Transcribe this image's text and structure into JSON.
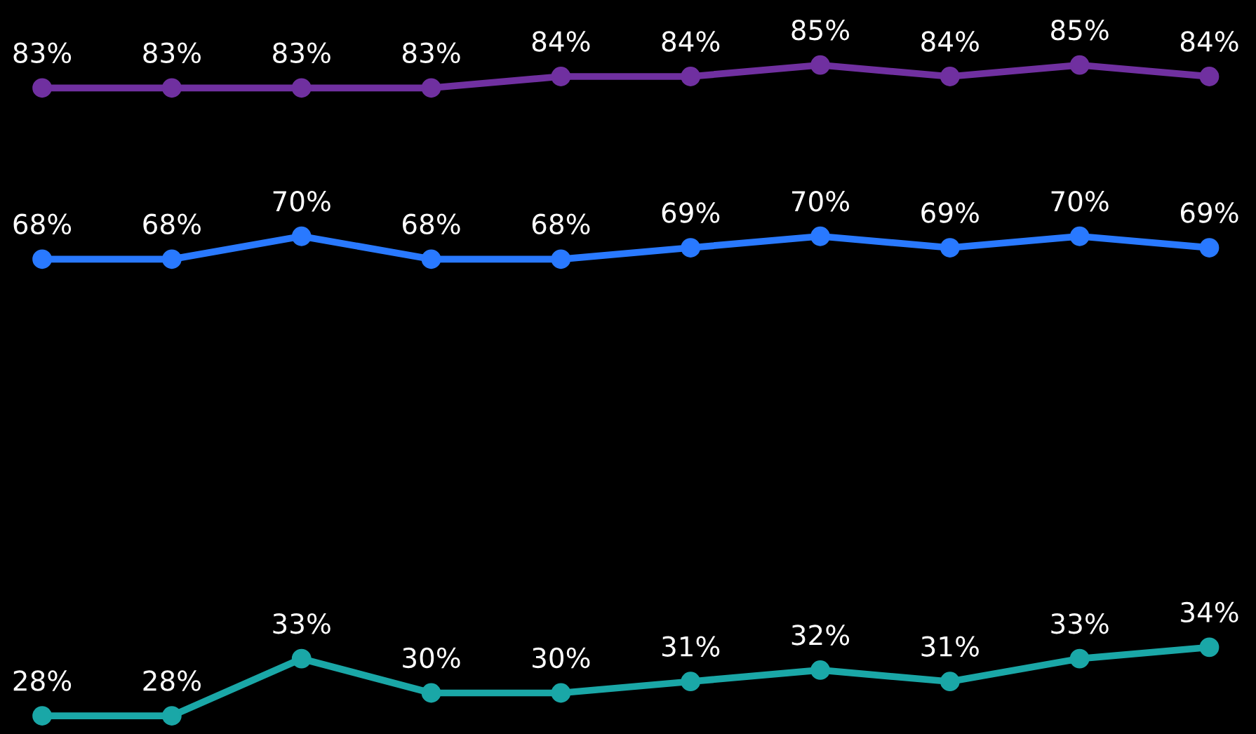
{
  "chart_data": {
    "type": "line",
    "categories": [
      null,
      null,
      null,
      null,
      null,
      null,
      null,
      null,
      null,
      null
    ],
    "series": [
      {
        "color": "#7030a0",
        "values": [
          83,
          83,
          83,
          83,
          84,
          84,
          85,
          84,
          85,
          84
        ],
        "value_labels": [
          "83%",
          "83%",
          "83%",
          "83%",
          "84%",
          "84%",
          "85%",
          "84%",
          "85%",
          "84%"
        ]
      },
      {
        "color": "#2979ff",
        "values": [
          68,
          68,
          70,
          68,
          68,
          69,
          70,
          69,
          70,
          69
        ],
        "value_labels": [
          "68%",
          "68%",
          "70%",
          "68%",
          "68%",
          "69%",
          "70%",
          "69%",
          "70%",
          "69%"
        ]
      },
      {
        "color": "#1aa7a7",
        "values": [
          28,
          28,
          33,
          30,
          30,
          31,
          32,
          31,
          33,
          34
        ],
        "value_labels": [
          "28%",
          "28%",
          "33%",
          "30%",
          "30%",
          "31%",
          "32%",
          "31%",
          "33%",
          "34%"
        ]
      }
    ],
    "marker": "circle",
    "line_style": "solid"
  }
}
